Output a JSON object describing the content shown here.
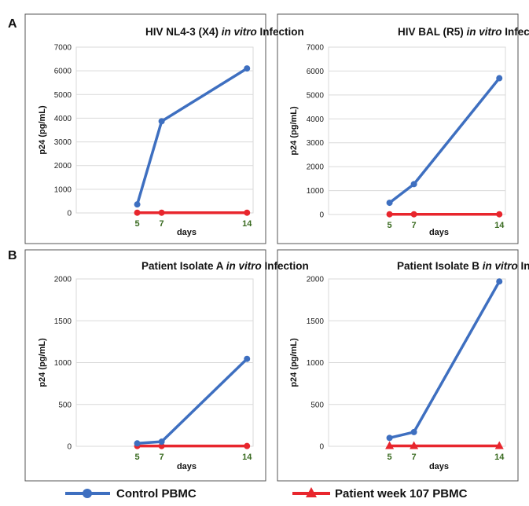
{
  "figure": {
    "panel_labels": [
      "A",
      "B"
    ],
    "legend": [
      {
        "label": "Control PBMC",
        "color": "#3e6fc0",
        "marker": "circle"
      },
      {
        "label": "Patient week 107 PBMC",
        "color": "#e8262d",
        "marker": "triangle"
      }
    ]
  },
  "chart_data": [
    {
      "type": "line",
      "title_pre": "HIV NL4-3 (X4) ",
      "title_em": "in vitro",
      "title_post": " Infection",
      "xlabel": "days",
      "ylabel": "p24 (pg/mL)",
      "x": [
        5,
        7,
        14
      ],
      "xlim": [
        0,
        14.5
      ],
      "ylim": [
        0,
        7000
      ],
      "yticks": [
        0,
        1000,
        2000,
        3000,
        4000,
        5000,
        6000,
        7000
      ],
      "tick_color": "#3a6b21",
      "grid": true,
      "series": [
        {
          "name": "Control PBMC",
          "color": "#3e6fc0",
          "marker": "circle",
          "values": [
            360,
            3870,
            6100
          ]
        },
        {
          "name": "Patient week 107 PBMC",
          "color": "#e8262d",
          "marker": "circle",
          "values": [
            10,
            10,
            10
          ]
        }
      ]
    },
    {
      "type": "line",
      "title_pre": "HIV BAL (R5) ",
      "title_em": "in vitro",
      "title_post": " Infection",
      "xlabel": "days",
      "ylabel": "p24 (pg/mL)",
      "x": [
        5,
        7,
        14
      ],
      "xlim": [
        0,
        14.5
      ],
      "ylim": [
        0,
        7000
      ],
      "yticks": [
        0,
        1000,
        2000,
        3000,
        4000,
        5000,
        6000,
        7000
      ],
      "tick_color": "#3a6b21",
      "grid": true,
      "series": [
        {
          "name": "Control PBMC",
          "color": "#3e6fc0",
          "marker": "circle",
          "values": [
            490,
            1270,
            5700
          ]
        },
        {
          "name": "Patient week 107 PBMC",
          "color": "#e8262d",
          "marker": "circle",
          "values": [
            10,
            10,
            10
          ]
        }
      ]
    },
    {
      "type": "line",
      "title_pre": "Patient Isolate A ",
      "title_em": "in vitro",
      "title_post": " Infection",
      "xlabel": "days",
      "ylabel": "p24 (pg/mL)",
      "x": [
        5,
        7,
        14
      ],
      "xlim": [
        0,
        14.5
      ],
      "ylim": [
        0,
        2000
      ],
      "yticks": [
        0,
        500,
        1000,
        1500,
        2000
      ],
      "tick_color": "#3a6b21",
      "grid": true,
      "series": [
        {
          "name": "Control PBMC",
          "color": "#3e6fc0",
          "marker": "circle",
          "values": [
            35,
            55,
            1045
          ]
        },
        {
          "name": "Patient week 107 PBMC",
          "color": "#e8262d",
          "marker": "circle",
          "values": [
            3,
            3,
            3
          ]
        }
      ]
    },
    {
      "type": "line",
      "title_pre": "Patient Isolate B ",
      "title_em": "in vitro",
      "title_post": " Infection",
      "xlabel": "days",
      "ylabel": "p24 (pg/mL)",
      "x": [
        5,
        7,
        14
      ],
      "xlim": [
        0,
        14.5
      ],
      "ylim": [
        0,
        2000
      ],
      "yticks": [
        0,
        500,
        1000,
        1500,
        2000
      ],
      "tick_color": "#3a6b21",
      "grid": true,
      "series": [
        {
          "name": "Control PBMC",
          "color": "#3e6fc0",
          "marker": "circle",
          "values": [
            100,
            170,
            1970
          ]
        },
        {
          "name": "Patient week 107 PBMC",
          "color": "#e8262d",
          "marker": "triangle",
          "values": [
            5,
            5,
            5
          ]
        }
      ]
    }
  ]
}
